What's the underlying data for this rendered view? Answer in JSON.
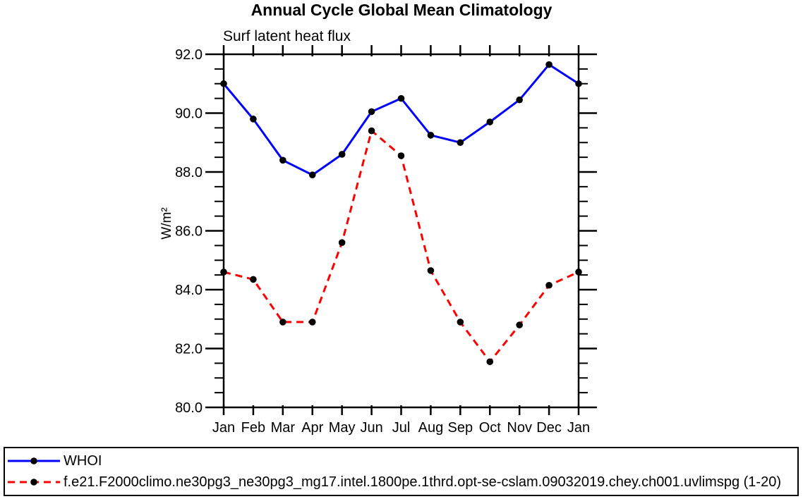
{
  "chart_data": {
    "type": "line",
    "title": "Annual Cycle Global Mean Climatology",
    "subtitle": "Surf latent heat flux",
    "ylabel": "W/m²",
    "categories": [
      "Jan",
      "Feb",
      "Mar",
      "Apr",
      "May",
      "Jun",
      "Jul",
      "Aug",
      "Sep",
      "Oct",
      "Nov",
      "Dec",
      "Jan"
    ],
    "ylim": [
      80.0,
      92.0
    ],
    "ytick_major_interval": 2.0,
    "ytick_minor_interval": 0.5,
    "ytick_labels": [
      "92.0",
      "90.0",
      "88.0",
      "86.0",
      "84.0",
      "82.0",
      "80.0"
    ],
    "grid": false,
    "axis_color": "#000000",
    "marker_color": "#000000",
    "legend_position": "bottom-left-box",
    "series": [
      {
        "name": "WHOI",
        "color": "#0000ff",
        "line_style": "solid",
        "marker": "filled-circle",
        "values": [
          91.0,
          89.8,
          88.4,
          87.9,
          88.6,
          90.05,
          90.5,
          89.25,
          89.0,
          89.7,
          90.45,
          91.65,
          91.0
        ]
      },
      {
        "name": "f.e21.F2000climo.ne30pg3_ne30pg3_mg17.intel.1800pe.1thrd.opt-se-cslam.09032019.chey.ch001.uvlimspg (1-20)",
        "color": "#ff0000",
        "line_style": "dashed",
        "marker": "filled-circle",
        "values": [
          84.6,
          84.35,
          82.9,
          82.9,
          85.6,
          89.4,
          88.55,
          84.65,
          82.9,
          81.55,
          82.8,
          84.15,
          84.6
        ]
      }
    ]
  }
}
